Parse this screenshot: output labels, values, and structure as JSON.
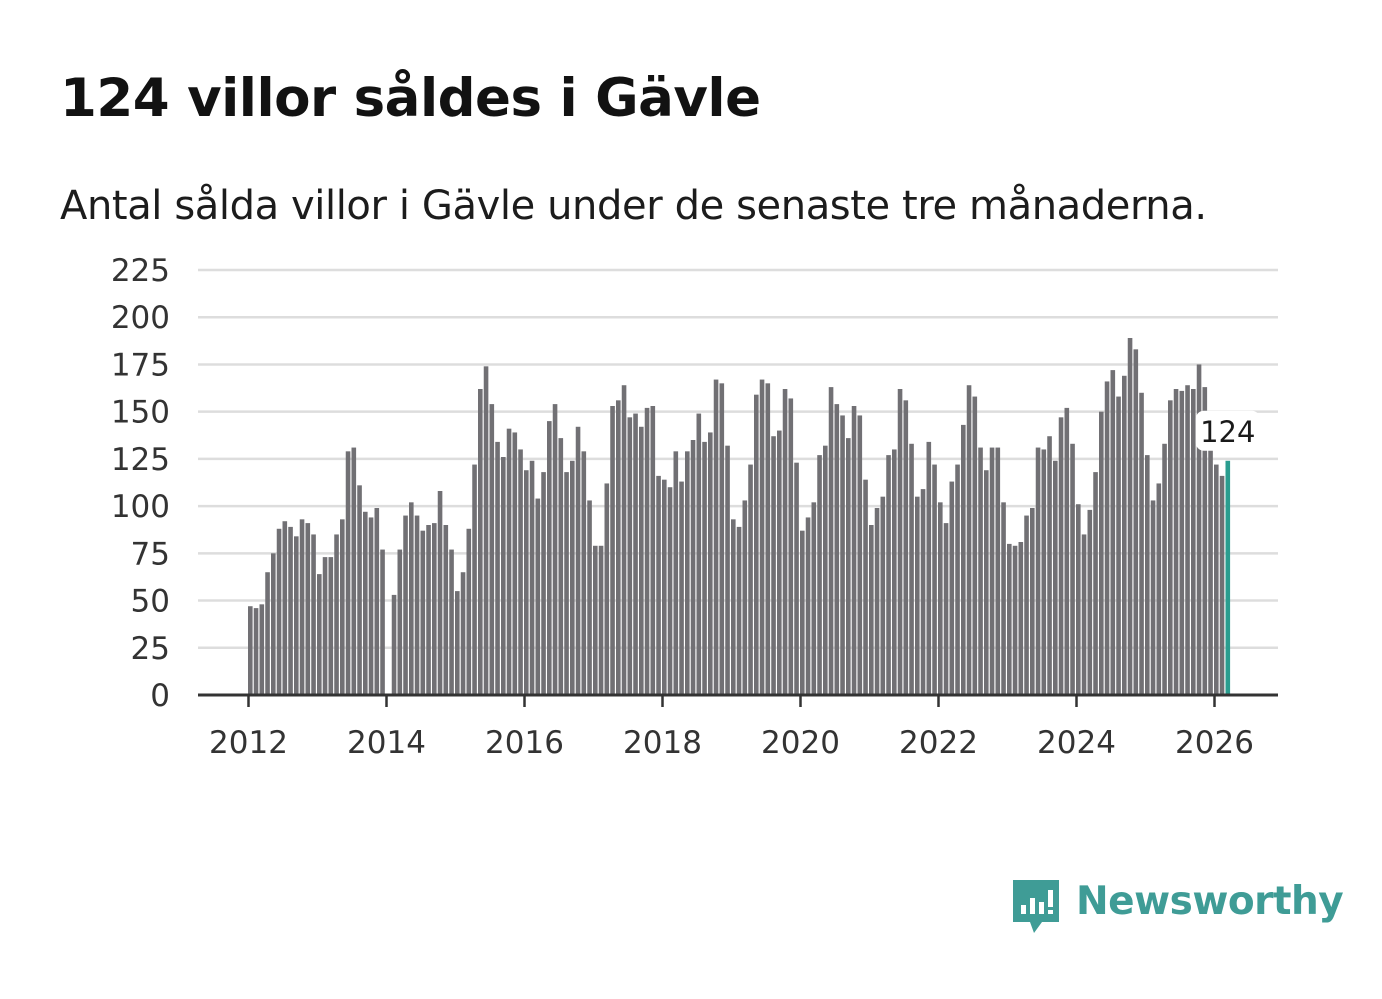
{
  "title": "124 villor såldes i Gävle",
  "subtitle": "Antal sålda villor i Gävle under de senaste tre månaderna.",
  "brand": {
    "name": "Newsworthy",
    "icon": "newsworthy-logo-icon"
  },
  "colors": {
    "bar": "#717074",
    "highlight": "#2a9d8f",
    "grid": "#dddddd",
    "axis": "#333333",
    "brand": "#3f9c96"
  },
  "chart_data": {
    "type": "bar",
    "title": "124 villor såldes i Gävle",
    "subtitle": "Antal sålda villor i Gävle under de senaste tre månaderna.",
    "xlabel": "",
    "ylabel": "",
    "x_unit": "monthly, 2012-01 to 2026-03",
    "start": "2012-01",
    "ylim": [
      0,
      225
    ],
    "y_ticks": [
      "0",
      "25",
      "50",
      "75",
      "100",
      "125",
      "150",
      "175",
      "200",
      "225"
    ],
    "x_ticks": [
      "2012",
      "2014",
      "2016",
      "2018",
      "2020",
      "2022",
      "2024",
      "2026"
    ],
    "grid": true,
    "values": [
      47,
      46,
      48,
      65,
      75,
      88,
      92,
      89,
      84,
      93,
      91,
      85,
      64,
      73,
      73,
      85,
      93,
      129,
      131,
      111,
      97,
      94,
      99,
      77,
      0,
      53,
      77,
      95,
      102,
      95,
      87,
      90,
      91,
      108,
      90,
      77,
      55,
      65,
      88,
      122,
      162,
      174,
      154,
      134,
      126,
      141,
      139,
      130,
      119,
      124,
      104,
      118,
      145,
      154,
      136,
      118,
      124,
      142,
      129,
      103,
      79,
      79,
      112,
      153,
      156,
      164,
      147,
      149,
      142,
      152,
      153,
      116,
      114,
      110,
      129,
      113,
      129,
      135,
      149,
      134,
      139,
      167,
      165,
      132,
      93,
      89,
      103,
      122,
      159,
      167,
      165,
      137,
      140,
      162,
      157,
      123,
      87,
      94,
      102,
      127,
      132,
      163,
      154,
      148,
      136,
      153,
      148,
      114,
      90,
      99,
      105,
      127,
      130,
      162,
      156,
      133,
      105,
      109,
      134,
      122,
      102,
      91,
      113,
      122,
      143,
      164,
      158,
      131,
      119,
      131,
      131,
      102,
      80,
      79,
      81,
      95,
      99,
      131,
      130,
      137,
      124,
      147,
      152,
      133,
      101,
      85,
      98,
      118,
      150,
      166,
      172,
      158,
      169,
      189,
      183,
      160,
      127,
      103,
      112,
      133,
      156,
      162,
      161,
      164,
      162,
      175,
      163,
      131,
      122,
      116,
      124
    ],
    "highlight": {
      "index": 170,
      "value": 124,
      "label": "124"
    }
  }
}
